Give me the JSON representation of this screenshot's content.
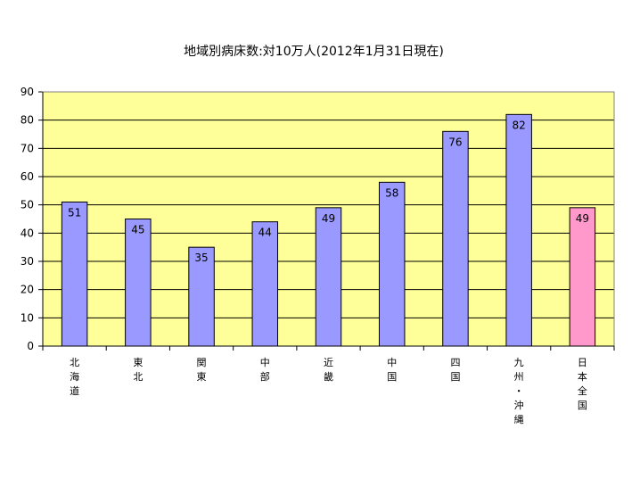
{
  "chart_data": {
    "type": "bar",
    "title": "地域別病床数:対10万人(2012年1月31日現在)",
    "xlabel": "",
    "ylabel": "",
    "ylim": [
      0,
      90
    ],
    "yticks": [
      0,
      10,
      20,
      30,
      40,
      50,
      60,
      70,
      80,
      90
    ],
    "grid": true,
    "categories": [
      "北海道",
      "東北",
      "関東",
      "中部",
      "近畿",
      "中国",
      "四国",
      "九州・沖縄",
      "日本全国"
    ],
    "category_label_lines": [
      [
        "北",
        "海",
        "道"
      ],
      [
        "東",
        "北"
      ],
      [
        "関",
        "東"
      ],
      [
        "中",
        "部"
      ],
      [
        "近",
        "畿"
      ],
      [
        "中",
        "国"
      ],
      [
        "四",
        "国"
      ],
      [
        "九",
        "州",
        "・",
        "沖",
        "縄"
      ],
      [
        "日",
        "本",
        "全",
        "国"
      ]
    ],
    "values": [
      51,
      45,
      35,
      44,
      49,
      58,
      76,
      82,
      49
    ],
    "data_labels": [
      "51",
      "45",
      "35",
      "44",
      "49",
      "58",
      "76",
      "82",
      "49"
    ],
    "bar_colors": [
      "#9999ff",
      "#9999ff",
      "#9999ff",
      "#9999ff",
      "#9999ff",
      "#9999ff",
      "#9999ff",
      "#9999ff",
      "#ff99cc"
    ],
    "plot_background": "#ffff99"
  }
}
